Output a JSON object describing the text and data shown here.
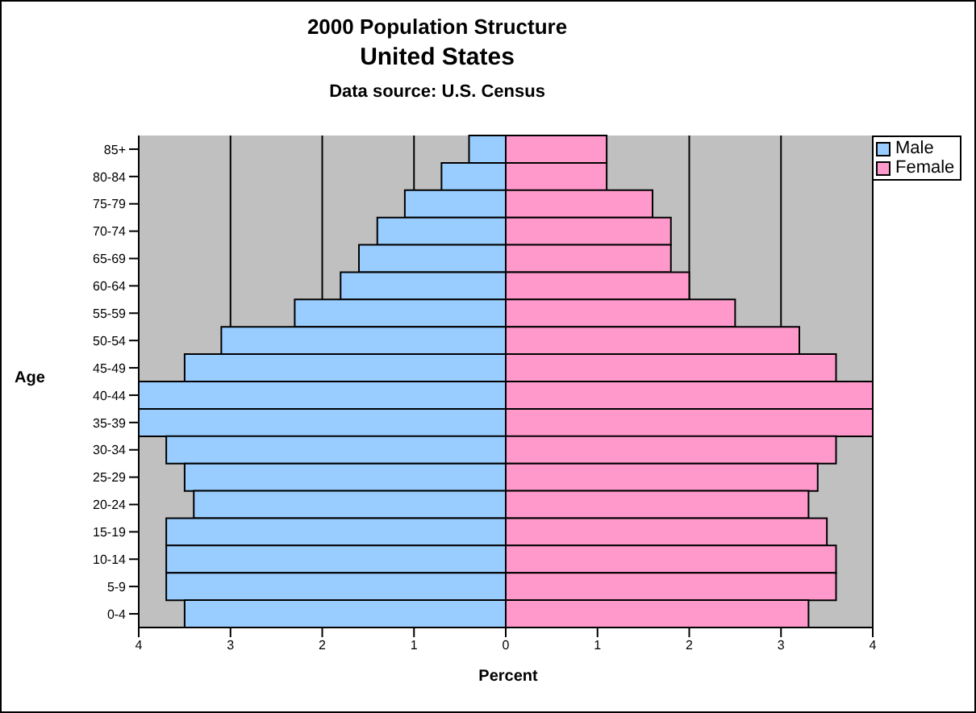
{
  "chart_data": {
    "type": "bar",
    "orientation": "horizontal",
    "title": "2000 Population Structure",
    "subtitle": "United States",
    "annotations": [
      "Data source: U.S. Census"
    ],
    "xlabel": "Percent",
    "ylabel": "Age",
    "categories": [
      "85+",
      "80-84",
      "75-79",
      "70-74",
      "65-69",
      "60-64",
      "55-59",
      "50-54",
      "45-49",
      "40-44",
      "35-39",
      "30-34",
      "25-29",
      "20-24",
      "15-19",
      "10-14",
      "5-9",
      "0-4"
    ],
    "series": [
      {
        "name": "Male",
        "color": "#99ccff",
        "values": [
          -0.4,
          -0.7,
          -1.1,
          -1.4,
          -1.6,
          -1.8,
          -2.3,
          -3.1,
          -3.5,
          -4.0,
          -4.0,
          -3.7,
          -3.5,
          -3.4,
          -3.7,
          -3.7,
          -3.7,
          -3.5
        ]
      },
      {
        "name": "Female",
        "color": "#ff99cc",
        "values": [
          1.1,
          1.1,
          1.6,
          1.8,
          1.8,
          2.0,
          2.5,
          3.2,
          3.6,
          4.0,
          4.0,
          3.6,
          3.4,
          3.3,
          3.5,
          3.6,
          3.6,
          3.3
        ]
      }
    ],
    "xlim": [
      -4,
      4
    ],
    "xticks": [
      {
        "value": -4,
        "label": "4"
      },
      {
        "value": -3,
        "label": "3"
      },
      {
        "value": -2,
        "label": "2"
      },
      {
        "value": -1,
        "label": "1"
      },
      0,
      1,
      2,
      3,
      4
    ],
    "grid": "x",
    "legend": "top right",
    "stacked": true
  }
}
